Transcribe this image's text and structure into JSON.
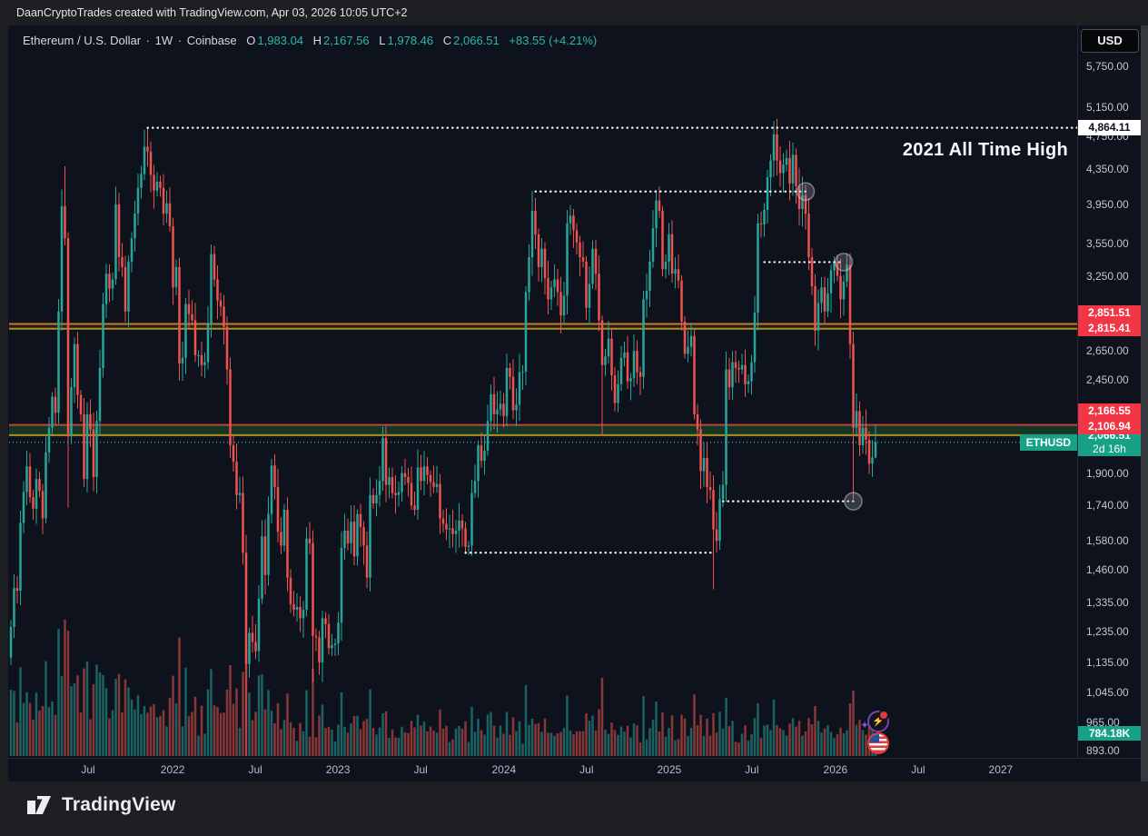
{
  "attribution": "DaanCryptoTrades created with TradingView.com, Apr 03, 2026 10:05 UTC+2",
  "logo_text": "TradingView",
  "usd_button": "USD",
  "header": {
    "title": "Ethereum / U.S. Dollar",
    "sep1": "·",
    "interval": "1W",
    "sep2": "·",
    "exchange": "Coinbase",
    "o_label": "O",
    "o": "1,983.04",
    "h_label": "H",
    "h": "2,167.56",
    "l_label": "L",
    "l": "1,978.46",
    "c_label": "C",
    "c": "2,066.51",
    "change": "+83.55 (+4.21%)"
  },
  "annotation": {
    "text": "2021 All Time High"
  },
  "eth_tag": "ETHUSD",
  "chart_data": {
    "type": "candlestick",
    "symbol": "ETHUSD",
    "interval": "1W",
    "exchange": "Coinbase",
    "scale": "log",
    "first_open": 1150,
    "start_week": "2021-01-11",
    "last": {
      "open": 1983.04,
      "high": 2167.56,
      "low": 1978.46,
      "close": 2066.51,
      "change": "+83.55 (+4.21%)",
      "countdown": "2d 16h",
      "volume_label": "784.18K"
    },
    "weekly_closes": [
      1250,
      1390,
      1380,
      1660,
      1805,
      1935,
      1780,
      1725,
      1870,
      1810,
      1680,
      2010,
      2150,
      2340,
      2240,
      2950,
      3930,
      3600,
      2100,
      2400,
      2700,
      2350,
      2230,
      1870,
      2230,
      2140,
      1880,
      2190,
      2530,
      3010,
      3270,
      3140,
      3220,
      3950,
      3420,
      3330,
      2950,
      3380,
      3600,
      3850,
      4130,
      4290,
      4620,
      4560,
      4280,
      4100,
      4200,
      4130,
      3850,
      3960,
      3720,
      3150,
      3330,
      2560,
      2600,
      3010,
      2930,
      2880,
      2620,
      2620,
      2550,
      2570,
      2860,
      3450,
      3220,
      3040,
      2990,
      2830,
      2520,
      2050,
      1960,
      1790,
      1800,
      1530,
      1130,
      1230,
      1200,
      1170,
      1350,
      1600,
      1440,
      1700,
      1940,
      1830,
      1620,
      1560,
      1720,
      1430,
      1330,
      1310,
      1320,
      1280,
      1310,
      1590,
      1570,
      1220,
      1215,
      1135,
      1280,
      1260,
      1180,
      1190,
      1195,
      1265,
      1550,
      1625,
      1570,
      1665,
      1515,
      1700,
      1640,
      1560,
      1430,
      1790,
      1750,
      1790,
      1860,
      2090,
      1840,
      1880,
      1800,
      1790,
      1805,
      1900,
      1880,
      1850,
      1740,
      1720,
      1930,
      1860,
      1935,
      1890,
      1855,
      1830,
      1845,
      1680,
      1655,
      1630,
      1635,
      1610,
      1625,
      1670,
      1635,
      1555,
      1560,
      1800,
      1860,
      2050,
      1965,
      2020,
      2190,
      2355,
      2230,
      2260,
      2295,
      2220,
      2530,
      2470,
      2255,
      2290,
      2500,
      2505,
      3110,
      3420,
      3880,
      3640,
      3330,
      3500,
      3230,
      3050,
      3150,
      3220,
      3110,
      2920,
      3080,
      3750,
      3830,
      3680,
      3560,
      3420,
      3380,
      2980,
      3180,
      3500,
      3270,
      2880,
      2550,
      2610,
      2740,
      2480,
      2300,
      2420,
      2600,
      2640,
      2440,
      2460,
      2650,
      2500,
      2470,
      3050,
      3120,
      3380,
      3700,
      3990,
      3880,
      3310,
      3380,
      3640,
      3270,
      3310,
      3210,
      2870,
      2630,
      2680,
      2760,
      2230,
      2140,
      1910,
      1980,
      1830,
      1815,
      1630,
      1580,
      1770,
      1840,
      2520,
      2400,
      2570,
      2530,
      2520,
      2550,
      2420,
      2440,
      2570,
      2940,
      3750,
      3740,
      3890,
      4250,
      4450,
      4780,
      4450,
      4300,
      4400,
      4480,
      4180,
      4520,
      4150,
      3900,
      4050,
      3850,
      3420,
      3160,
      2800,
      3020,
      3150,
      2950,
      3100,
      3300,
      3380,
      3250,
      3050,
      3200,
      3350,
      2700,
      2150,
      2250,
      2050,
      2150,
      2080,
      1950,
      1983.04,
      2066.51
    ],
    "wick_high_overrides": {
      "17": 4380,
      "43": 4868,
      "164": 4093,
      "203": 4107,
      "240": 4956,
      "272": 2167.56
    },
    "wick_low_overrides": {
      "18": 1730,
      "74": 880,
      "95": 1075,
      "186": 2111,
      "221": 1385,
      "265": 1768,
      "272": 1978.46
    },
    "volume_spikes": {
      "16": 88,
      "17": 150,
      "18": 138,
      "28": 92,
      "33": 85,
      "69": 100,
      "74": 118,
      "95": 96,
      "104": 70,
      "162": 78,
      "186": 86,
      "199": 66,
      "203": 60,
      "225": 64,
      "235": 58,
      "240": 62,
      "253": 55,
      "264": 58,
      "265": 72,
      "270": 40,
      "271": 30,
      "272": 25
    },
    "y_ticks": [
      {
        "price": 5750,
        "label": "5,750.00"
      },
      {
        "price": 5150,
        "label": "5,150.00"
      },
      {
        "price": 4750,
        "label": "4,750.00"
      },
      {
        "price": 4350,
        "label": "4,350.00"
      },
      {
        "price": 3950,
        "label": "3,950.00"
      },
      {
        "price": 3550,
        "label": "3,550.00"
      },
      {
        "price": 3250,
        "label": "3,250.00"
      },
      {
        "price": 2650,
        "label": "2,650.00"
      },
      {
        "price": 2450,
        "label": "2,450.00"
      },
      {
        "price": 1900,
        "label": "1,900.00"
      },
      {
        "price": 1740,
        "label": "1,740.00"
      },
      {
        "price": 1580,
        "label": "1,580.00"
      },
      {
        "price": 1460,
        "label": "1,460.00"
      },
      {
        "price": 1335,
        "label": "1,335.00"
      },
      {
        "price": 1235,
        "label": "1,235.00"
      },
      {
        "price": 1135,
        "label": "1,135.00"
      },
      {
        "price": 1045,
        "label": "1,045.00"
      },
      {
        "price": 965,
        "label": "965.00"
      },
      {
        "price": 893,
        "label": "893.00"
      }
    ],
    "x_ticks": [
      {
        "label": "Jul",
        "week": 24.3
      },
      {
        "label": "2022",
        "week": 50.9
      },
      {
        "label": "Jul",
        "week": 76.9
      },
      {
        "label": "2023",
        "week": 102.9
      },
      {
        "label": "Jul",
        "week": 128.9
      },
      {
        "label": "2024",
        "week": 155.1
      },
      {
        "label": "Jul",
        "week": 181.1
      },
      {
        "label": "2025",
        "week": 207.1
      },
      {
        "label": "Jul",
        "week": 233.1
      },
      {
        "label": "2026",
        "week": 259.4
      },
      {
        "label": "Jul",
        "week": 285.4
      },
      {
        "label": "2027",
        "week": 311.4
      }
    ],
    "levels": [
      {
        "price": 2851.51,
        "line_color": "#c9782a",
        "label": "2,851.51",
        "label_bg": "#f23645"
      },
      {
        "price": 2815.41,
        "line_color": "#b0901c",
        "label": "2,815.41",
        "label_bg": "#f23645"
      },
      {
        "price": 2166.55,
        "line_color": "#c2453a",
        "label": "2,166.55",
        "label_bg": "#f23645"
      },
      {
        "price": 2106.94,
        "line_color": "#b0901c",
        "label": "2,106.94",
        "label_bg": "#f23645"
      }
    ],
    "level_bands": [
      {
        "from": 2851.51,
        "to": 2815.41,
        "fill": "rgba(165,128,38,0.12)"
      },
      {
        "from": 2166.55,
        "to": 2106.94,
        "fill": "rgba(35,110,55,0.38)"
      }
    ],
    "rays": [
      {
        "price": 4864.11,
        "from_week": 43,
        "to_week": "end",
        "circle": false,
        "scale_label": "4,864.11"
      },
      {
        "price": 4090,
        "from_week": 165,
        "to_week": 250,
        "circle": true
      },
      {
        "price": 3375,
        "from_week": 237,
        "to_week": 262,
        "circle": true
      },
      {
        "price": 1530,
        "from_week": 143,
        "to_week": 221,
        "circle": false
      },
      {
        "price": 1760,
        "from_week": 224,
        "to_week": 265,
        "circle": true
      }
    ],
    "last_price_line": {
      "price": 2066.51,
      "color": "#2cb8a8"
    },
    "colors": {
      "up": "#26a69a",
      "down": "#ef5350",
      "vol_up": "rgba(38,166,154,0.55)",
      "vol_down": "rgba(239,83,80,0.55)",
      "label_red": "#f23645",
      "label_teal": "#17a288",
      "ath_label_bg": "#ffffff",
      "ath_label_fg": "#0c0e15",
      "dotted_white": "#f2f4f8",
      "axis_text": "#b7bcc9",
      "background": "#0e121d"
    }
  }
}
